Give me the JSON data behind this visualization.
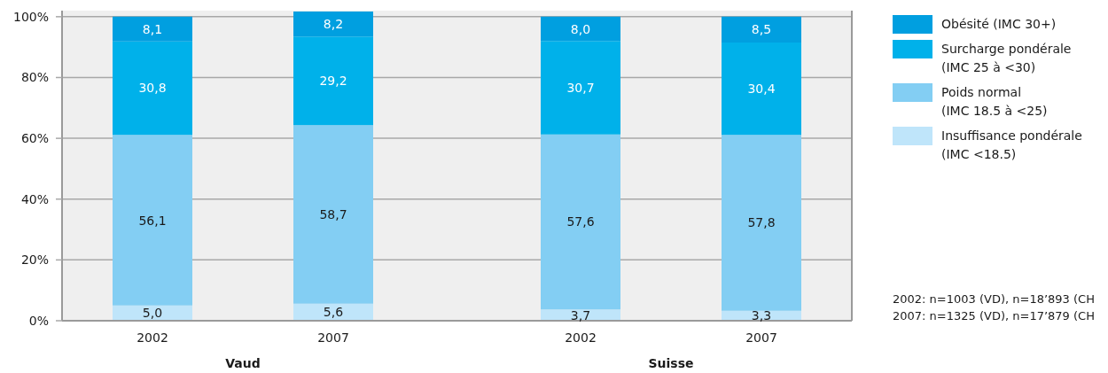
{
  "chart_data": [
    {
      "type": "bar",
      "stacked": true,
      "categories": [
        "2002",
        "2007"
      ],
      "xlabel": "Vaud",
      "ylim": [
        0,
        102
      ],
      "yticks": [
        {
          "value": 0,
          "label": "0%"
        },
        {
          "value": 20,
          "label": "20%"
        },
        {
          "value": 40,
          "label": "40%"
        },
        {
          "value": 60,
          "label": "60%"
        },
        {
          "value": 80,
          "label": "80%"
        },
        {
          "value": 100,
          "label": "100%"
        }
      ],
      "grid": "y",
      "series": [
        {
          "color": "#bfe5fa",
          "values": [
            5.0,
            5.6
          ],
          "value_labels": [
            "5,0",
            "5,6"
          ]
        },
        {
          "color": "#83cef3",
          "values": [
            56.1,
            58.7
          ],
          "value_labels": [
            "56,1",
            "58,7"
          ]
        },
        {
          "color": "#00b1ea",
          "values": [
            30.8,
            29.2
          ],
          "value_labels": [
            "30,8",
            "29,2"
          ]
        },
        {
          "color": "#009fe0",
          "values": [
            8.1,
            8.2
          ],
          "value_labels": [
            "8,1",
            "8,2"
          ]
        }
      ]
    },
    {
      "type": "bar",
      "stacked": true,
      "categories": [
        "2002",
        "2007"
      ],
      "xlabel": "Suisse",
      "ylim": [
        0,
        102
      ],
      "yticks": [
        0,
        20,
        40,
        60,
        80,
        100
      ],
      "grid": "y",
      "tick_labels": "x",
      "legend": "right",
      "series": [
        {
          "name": "Insuffisance pondérale (IMC <18.5)",
          "color": "#bfe5fa",
          "values": [
            3.7,
            3.3
          ],
          "value_labels": [
            "3,7",
            "3,3"
          ]
        },
        {
          "name": "Poids normal (IMC 18.5 à <25)",
          "color": "#83cef3",
          "values": [
            57.6,
            57.8
          ],
          "value_labels": [
            "57,6",
            "57,8"
          ]
        },
        {
          "name": "Surcharge pondérale (IMC 25 à <30)",
          "color": "#00b1ea",
          "values": [
            30.7,
            30.4
          ],
          "value_labels": [
            "30,7",
            "30,4"
          ]
        },
        {
          "name": "Obésité (IMC 30+)",
          "color": "#009fe0",
          "values": [
            8.0,
            8.5
          ],
          "value_labels": [
            "8,0",
            "8,5"
          ]
        }
      ],
      "annotations": [
        "2002: n=1003 (VD), n=18’893 (CH",
        "2007: n=1325 (VD), n=17’879 (CH"
      ]
    }
  ]
}
